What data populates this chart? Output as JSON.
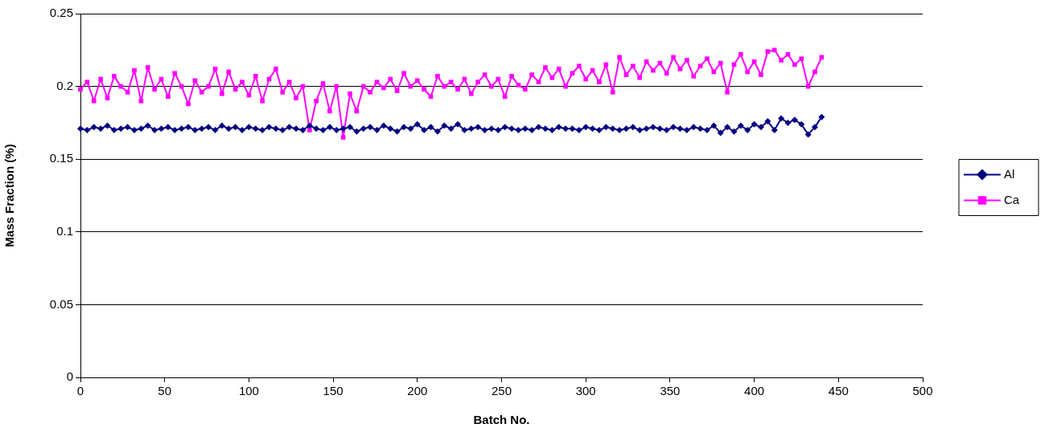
{
  "chart_data": {
    "type": "line",
    "xlabel": "Batch No.",
    "ylabel": "Mass Fraction (%)",
    "x": [
      0,
      4,
      8,
      12,
      16,
      20,
      24,
      28,
      32,
      36,
      40,
      44,
      48,
      52,
      56,
      60,
      64,
      68,
      72,
      76,
      80,
      84,
      88,
      92,
      96,
      100,
      104,
      108,
      112,
      116,
      120,
      124,
      128,
      132,
      136,
      140,
      144,
      148,
      152,
      156,
      160,
      164,
      168,
      172,
      176,
      180,
      184,
      188,
      192,
      196,
      200,
      204,
      208,
      212,
      216,
      220,
      224,
      228,
      232,
      236,
      240,
      244,
      248,
      252,
      256,
      260,
      264,
      268,
      272,
      276,
      280,
      284,
      288,
      292,
      296,
      300,
      304,
      308,
      312,
      316,
      320,
      324,
      328,
      332,
      336,
      340,
      344,
      348,
      352,
      356,
      360,
      364,
      368,
      372,
      376,
      380,
      384,
      388,
      392,
      396,
      400,
      404,
      408,
      412,
      416,
      420,
      424,
      428,
      432,
      436,
      440
    ],
    "xlim": [
      0,
      500
    ],
    "xticks": [
      0,
      50,
      100,
      150,
      200,
      250,
      300,
      350,
      400,
      450,
      500
    ],
    "ylim": [
      0,
      0.25
    ],
    "yticks": [
      0,
      0.05,
      0.1,
      0.15,
      0.2,
      0.25
    ],
    "grid": "y",
    "legend": "right",
    "series": [
      {
        "name": "Al",
        "color": "#000080",
        "marker": "diamond",
        "values": [
          0.171,
          0.17,
          0.172,
          0.171,
          0.173,
          0.17,
          0.171,
          0.172,
          0.17,
          0.171,
          0.173,
          0.17,
          0.171,
          0.172,
          0.17,
          0.171,
          0.172,
          0.17,
          0.171,
          0.172,
          0.17,
          0.173,
          0.171,
          0.172,
          0.17,
          0.172,
          0.171,
          0.17,
          0.172,
          0.171,
          0.17,
          0.172,
          0.171,
          0.17,
          0.173,
          0.171,
          0.17,
          0.172,
          0.17,
          0.171,
          0.172,
          0.169,
          0.171,
          0.172,
          0.17,
          0.173,
          0.171,
          0.169,
          0.172,
          0.171,
          0.174,
          0.17,
          0.172,
          0.169,
          0.173,
          0.171,
          0.174,
          0.17,
          0.171,
          0.172,
          0.17,
          0.171,
          0.17,
          0.172,
          0.171,
          0.17,
          0.171,
          0.17,
          0.172,
          0.171,
          0.17,
          0.172,
          0.171,
          0.171,
          0.17,
          0.172,
          0.171,
          0.17,
          0.172,
          0.171,
          0.17,
          0.171,
          0.172,
          0.17,
          0.171,
          0.172,
          0.171,
          0.17,
          0.172,
          0.171,
          0.17,
          0.172,
          0.171,
          0.17,
          0.173,
          0.168,
          0.172,
          0.169,
          0.173,
          0.17,
          0.174,
          0.172,
          0.176,
          0.17,
          0.178,
          0.175,
          0.177,
          0.174,
          0.167,
          0.172,
          0.179
        ]
      },
      {
        "name": "Ca",
        "color": "#ff00ff",
        "marker": "square",
        "values": [
          0.198,
          0.203,
          0.19,
          0.205,
          0.192,
          0.207,
          0.2,
          0.196,
          0.211,
          0.19,
          0.213,
          0.198,
          0.205,
          0.193,
          0.209,
          0.2,
          0.188,
          0.204,
          0.196,
          0.2,
          0.212,
          0.195,
          0.21,
          0.198,
          0.203,
          0.194,
          0.207,
          0.19,
          0.205,
          0.212,
          0.196,
          0.203,
          0.192,
          0.2,
          0.17,
          0.19,
          0.202,
          0.183,
          0.2,
          0.165,
          0.195,
          0.183,
          0.2,
          0.196,
          0.203,
          0.199,
          0.205,
          0.197,
          0.209,
          0.2,
          0.204,
          0.198,
          0.193,
          0.207,
          0.2,
          0.203,
          0.198,
          0.205,
          0.195,
          0.203,
          0.208,
          0.2,
          0.205,
          0.193,
          0.207,
          0.201,
          0.198,
          0.208,
          0.203,
          0.213,
          0.206,
          0.212,
          0.2,
          0.209,
          0.214,
          0.205,
          0.211,
          0.203,
          0.215,
          0.196,
          0.22,
          0.208,
          0.214,
          0.206,
          0.217,
          0.211,
          0.216,
          0.209,
          0.22,
          0.212,
          0.218,
          0.207,
          0.214,
          0.219,
          0.21,
          0.216,
          0.196,
          0.215,
          0.222,
          0.21,
          0.217,
          0.208,
          0.224,
          0.225,
          0.218,
          0.222,
          0.215,
          0.219,
          0.2,
          0.21,
          0.22
        ]
      }
    ]
  }
}
